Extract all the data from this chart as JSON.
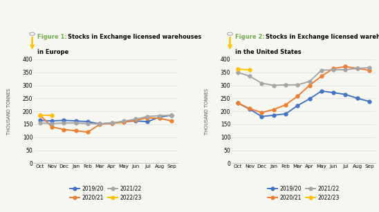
{
  "months": [
    "Oct",
    "Nov",
    "Dec",
    "Jan",
    "Feb",
    "Mar",
    "Apr",
    "May",
    "Jun",
    "Jul",
    "Aug",
    "Sep"
  ],
  "ylabel": "THOUSAND TONNES",
  "fig1": {
    "2019/20": [
      165,
      163,
      165,
      163,
      160,
      152,
      155,
      160,
      163,
      160,
      178,
      185
    ],
    "2020/21": [
      185,
      140,
      130,
      125,
      120,
      150,
      153,
      158,
      165,
      175,
      173,
      163
    ],
    "2021/22": [
      155,
      153,
      155,
      155,
      153,
      152,
      155,
      162,
      170,
      180,
      183,
      185
    ],
    "2022/23": [
      185,
      185,
      null,
      null,
      null,
      null,
      null,
      null,
      null,
      null,
      null,
      null
    ]
  },
  "fig2": {
    "2019/20": [
      232,
      208,
      180,
      185,
      190,
      222,
      248,
      278,
      272,
      265,
      250,
      238
    ],
    "2020/21": [
      232,
      210,
      195,
      207,
      225,
      258,
      300,
      335,
      365,
      372,
      365,
      358
    ],
    "2021/22": [
      350,
      335,
      308,
      300,
      302,
      302,
      315,
      358,
      360,
      360,
      365,
      368
    ],
    "2022/23": [
      362,
      360,
      null,
      null,
      null,
      null,
      null,
      null,
      null,
      null,
      null,
      null
    ]
  },
  "colors": {
    "2019/20": "#4472C4",
    "2020/21": "#ED7D31",
    "2021/22": "#A5A5A5",
    "2022/23": "#FFC000"
  },
  "yticks": [
    0,
    50,
    100,
    150,
    200,
    250,
    300,
    350,
    400
  ],
  "title_green": "#70AD47",
  "fig_bg": "#F7F7F2",
  "grid_color": "#D9D9D9",
  "spine_color": "#BBBBBB",
  "marker": "o",
  "markersize": 3.5,
  "linewidth": 1.4,
  "legend_order": [
    "2019/20",
    "2020/21",
    "2021/22",
    "2022/23"
  ]
}
